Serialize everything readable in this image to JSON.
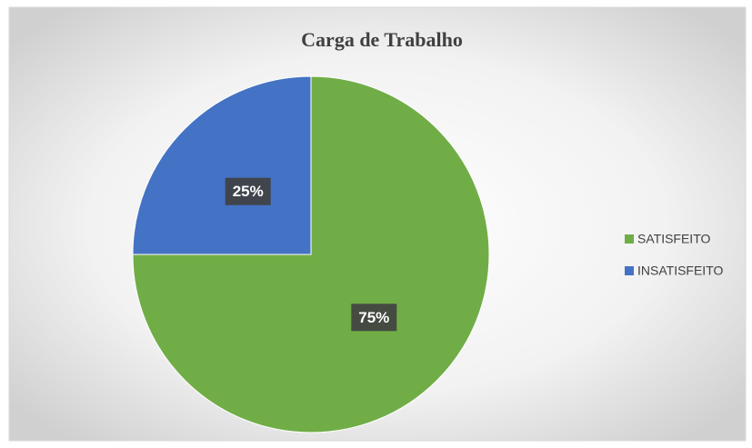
{
  "chart_data": {
    "type": "pie",
    "title": "Carga de Trabalho",
    "categories": [
      "SATISFEITO",
      "INSATISFEITO"
    ],
    "values": [
      75,
      25
    ],
    "value_labels": [
      "75%",
      "25%"
    ],
    "colors": [
      "#70ad47",
      "#4472c4"
    ],
    "legend": "right"
  }
}
